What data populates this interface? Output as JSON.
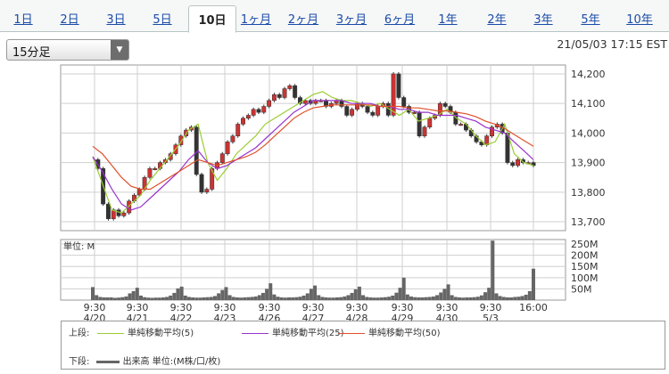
{
  "tabs": [
    {
      "label": "1日",
      "active": false
    },
    {
      "label": "2日",
      "active": false
    },
    {
      "label": "3日",
      "active": false
    },
    {
      "label": "5日",
      "active": false
    },
    {
      "label": "10日",
      "active": true
    },
    {
      "label": "1ヶ月",
      "active": false
    },
    {
      "label": "2ヶ月",
      "active": false
    },
    {
      "label": "3ヶ月",
      "active": false
    },
    {
      "label": "6ヶ月",
      "active": false
    },
    {
      "label": "1年",
      "active": false
    },
    {
      "label": "2年",
      "active": false
    },
    {
      "label": "3年",
      "active": false
    },
    {
      "label": "5年",
      "active": false
    },
    {
      "label": "10年",
      "active": false
    }
  ],
  "interval_select": {
    "value": "15分足"
  },
  "timestamp": "21/05/03 17:15 EST",
  "colors": {
    "candle": "#cc3333",
    "ma5": "#9acd32",
    "ma25": "#9933cc",
    "ma50": "#e0502a",
    "volume": "#666666",
    "grid": "#cfcfcf",
    "frame": "#9a9a9a"
  },
  "chart_data": [
    {
      "type": "line",
      "description": "price chart (15-minute candles with moving averages)",
      "x_ticks": [
        {
          "time": "9:30",
          "date": "4/20"
        },
        {
          "time": "9:30",
          "date": "4/21"
        },
        {
          "time": "9:30",
          "date": "4/22"
        },
        {
          "time": "9:30",
          "date": "4/23"
        },
        {
          "time": "9:30",
          "date": "4/26"
        },
        {
          "time": "9:30",
          "date": "4/27"
        },
        {
          "time": "9:30",
          "date": "4/28"
        },
        {
          "time": "9:30",
          "date": "4/29"
        },
        {
          "time": "9:30",
          "date": "4/30"
        },
        {
          "time": "9:30",
          "date": "5/3"
        },
        {
          "time": "16:00",
          "date": ""
        }
      ],
      "y_ticks": [
        "14,200",
        "14,100",
        "14,000",
        "13,900",
        "13,800",
        "13,700"
      ],
      "ylim": [
        13670,
        14230
      ],
      "series": [
        {
          "name": "単純移動平均(5)",
          "values": [
            13920,
            13830,
            13740,
            13730,
            13760,
            13790,
            13840,
            13880,
            13920,
            13960,
            14010,
            14030,
            13900,
            13840,
            13880,
            13930,
            13960,
            13990,
            14030,
            14050,
            14070,
            14090,
            14110,
            14130,
            14140,
            14120,
            14110,
            14110,
            14100,
            14090,
            14100,
            14080,
            14060,
            14080,
            14040,
            14050,
            14060,
            14080,
            14050,
            14030,
            13990,
            13960,
            13970,
            14030,
            13930,
            13900,
            13890
          ]
        },
        {
          "name": "単純移動平均(25)",
          "values": [
            13920,
            13870,
            13810,
            13760,
            13740,
            13750,
            13780,
            13810,
            13840,
            13870,
            13910,
            13940,
            13900,
            13880,
            13890,
            13910,
            13930,
            13950,
            13980,
            14010,
            14040,
            14070,
            14090,
            14110,
            14110,
            14110,
            14110,
            14100,
            14100,
            14100,
            14090,
            14090,
            14080,
            14080,
            14070,
            14070,
            14060,
            14060,
            14060,
            14050,
            14040,
            14020,
            14010,
            14000,
            13970,
            13940,
            13910
          ]
        },
        {
          "name": "単純移動平均(50)",
          "values": [
            13955,
            13930,
            13890,
            13850,
            13820,
            13810,
            13810,
            13830,
            13850,
            13870,
            13890,
            13910,
            13900,
            13890,
            13900,
            13910,
            13920,
            13935,
            13960,
            13990,
            14020,
            14050,
            14070,
            14085,
            14090,
            14095,
            14095,
            14095,
            14095,
            14095,
            14090,
            14090,
            14090,
            14085,
            14085,
            14080,
            14075,
            14075,
            14070,
            14065,
            14055,
            14040,
            14030,
            14015,
            13995,
            13975,
            13955
          ]
        }
      ],
      "price_path": [
        13910,
        13880,
        13760,
        13710,
        13740,
        13720,
        13730,
        13770,
        13790,
        13810,
        13850,
        13880,
        13880,
        13900,
        13910,
        13930,
        13960,
        13990,
        14010,
        14020,
        13860,
        13800,
        13810,
        13880,
        13900,
        13930,
        13970,
        13990,
        14030,
        14050,
        14060,
        14080,
        14070,
        14090,
        14110,
        14130,
        14120,
        14150,
        14160,
        14120,
        14100,
        14110,
        14100,
        14110,
        14110,
        14090,
        14100,
        14110,
        14090,
        14060,
        14080,
        14100,
        14090,
        14070,
        14060,
        14090,
        14100,
        14060,
        14200,
        14120,
        14090,
        14070,
        14070,
        13990,
        14020,
        14050,
        14060,
        14100,
        14090,
        14070,
        14030,
        14030,
        14010,
        13990,
        13970,
        13960,
        13990,
        14020,
        14030,
        14000,
        13900,
        13890,
        13910,
        13900,
        13900,
        13890
      ]
    },
    {
      "type": "bar",
      "description": "volume chart",
      "unit_label": "単位: M",
      "y_ticks": [
        "250M",
        "200M",
        "150M",
        "100M",
        "50M"
      ],
      "ylim": [
        0,
        270
      ],
      "values": [
        58,
        22,
        14,
        12,
        12,
        12,
        10,
        11,
        13,
        16,
        30,
        40,
        55,
        20,
        13,
        11,
        10,
        11,
        11,
        12,
        14,
        20,
        32,
        52,
        60,
        20,
        14,
        12,
        11,
        11,
        12,
        13,
        14,
        18,
        30,
        45,
        58,
        22,
        14,
        12,
        11,
        12,
        13,
        14,
        16,
        22,
        32,
        50,
        75,
        25,
        15,
        12,
        11,
        12,
        12,
        13,
        15,
        20,
        30,
        50,
        65,
        22,
        14,
        12,
        11,
        11,
        12,
        13,
        16,
        22,
        32,
        48,
        60,
        22,
        14,
        12,
        11,
        11,
        12,
        13,
        15,
        20,
        33,
        55,
        100,
        25,
        16,
        13,
        12,
        12,
        13,
        14,
        16,
        22,
        34,
        50,
        70,
        22,
        14,
        12,
        11,
        12,
        12,
        13,
        15,
        21,
        35,
        55,
        265,
        30,
        18,
        14,
        12,
        12,
        14,
        15,
        18,
        24,
        40,
        140
      ]
    }
  ],
  "legend": {
    "upper_label": "上段:",
    "lower_label": "下段:",
    "lower_item": "出来高 単位:(M株/口/枚)"
  }
}
